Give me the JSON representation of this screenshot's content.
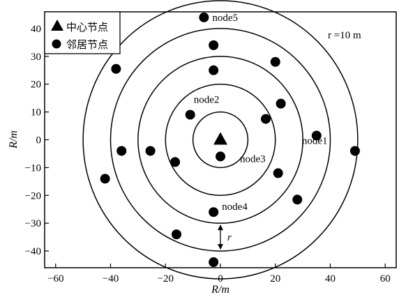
{
  "chart_data": {
    "type": "scatter",
    "xlabel": "R/m",
    "ylabel": "R/m",
    "xlim": [
      -64,
      64
    ],
    "ylim": [
      -46,
      46
    ],
    "xticks": [
      -60,
      -40,
      -20,
      0,
      20,
      40,
      60
    ],
    "yticks": [
      -40,
      -30,
      -20,
      -10,
      0,
      10,
      20,
      30,
      40
    ],
    "xtick_labels": [
      "−60",
      "−40",
      "−20",
      "0",
      "20",
      "40",
      "60"
    ],
    "ytick_labels": [
      "−40",
      "−30",
      "−20",
      "−10",
      "0",
      "10",
      "20",
      "30",
      "40"
    ],
    "grid": false,
    "legend": {
      "placement": "top-left",
      "entries": [
        {
          "marker": "triangle",
          "label": "中心节点"
        },
        {
          "marker": "circle",
          "label": "邻居节点"
        }
      ]
    },
    "radius_label": "r =10 m",
    "radius_arrow_label": "r",
    "center": {
      "x": 0,
      "y": 0
    },
    "rings": [
      10,
      20,
      30,
      40,
      50
    ],
    "neighbors": [
      {
        "x": 0,
        "y": -6,
        "label": "node3"
      },
      {
        "x": -11,
        "y": 9,
        "label": "node2"
      },
      {
        "x": 35,
        "y": 1.5,
        "label": "node1"
      },
      {
        "x": -2.5,
        "y": -26,
        "label": "node4"
      },
      {
        "x": -6,
        "y": 44,
        "label": "node5"
      },
      {
        "x": -2.5,
        "y": 34,
        "label": ""
      },
      {
        "x": 20,
        "y": 28,
        "label": ""
      },
      {
        "x": -38,
        "y": 25.5,
        "label": ""
      },
      {
        "x": -2.5,
        "y": 25,
        "label": ""
      },
      {
        "x": 22,
        "y": 13,
        "label": ""
      },
      {
        "x": 16.5,
        "y": 7.5,
        "label": ""
      },
      {
        "x": -36,
        "y": -4,
        "label": ""
      },
      {
        "x": -25.5,
        "y": -4,
        "label": ""
      },
      {
        "x": -16.5,
        "y": -8,
        "label": ""
      },
      {
        "x": 21,
        "y": -12,
        "label": ""
      },
      {
        "x": -42,
        "y": -14,
        "label": ""
      },
      {
        "x": 28,
        "y": -21.5,
        "label": ""
      },
      {
        "x": 49,
        "y": -4,
        "label": ""
      },
      {
        "x": -16,
        "y": -34,
        "label": ""
      },
      {
        "x": -2.5,
        "y": -44,
        "label": ""
      }
    ]
  }
}
